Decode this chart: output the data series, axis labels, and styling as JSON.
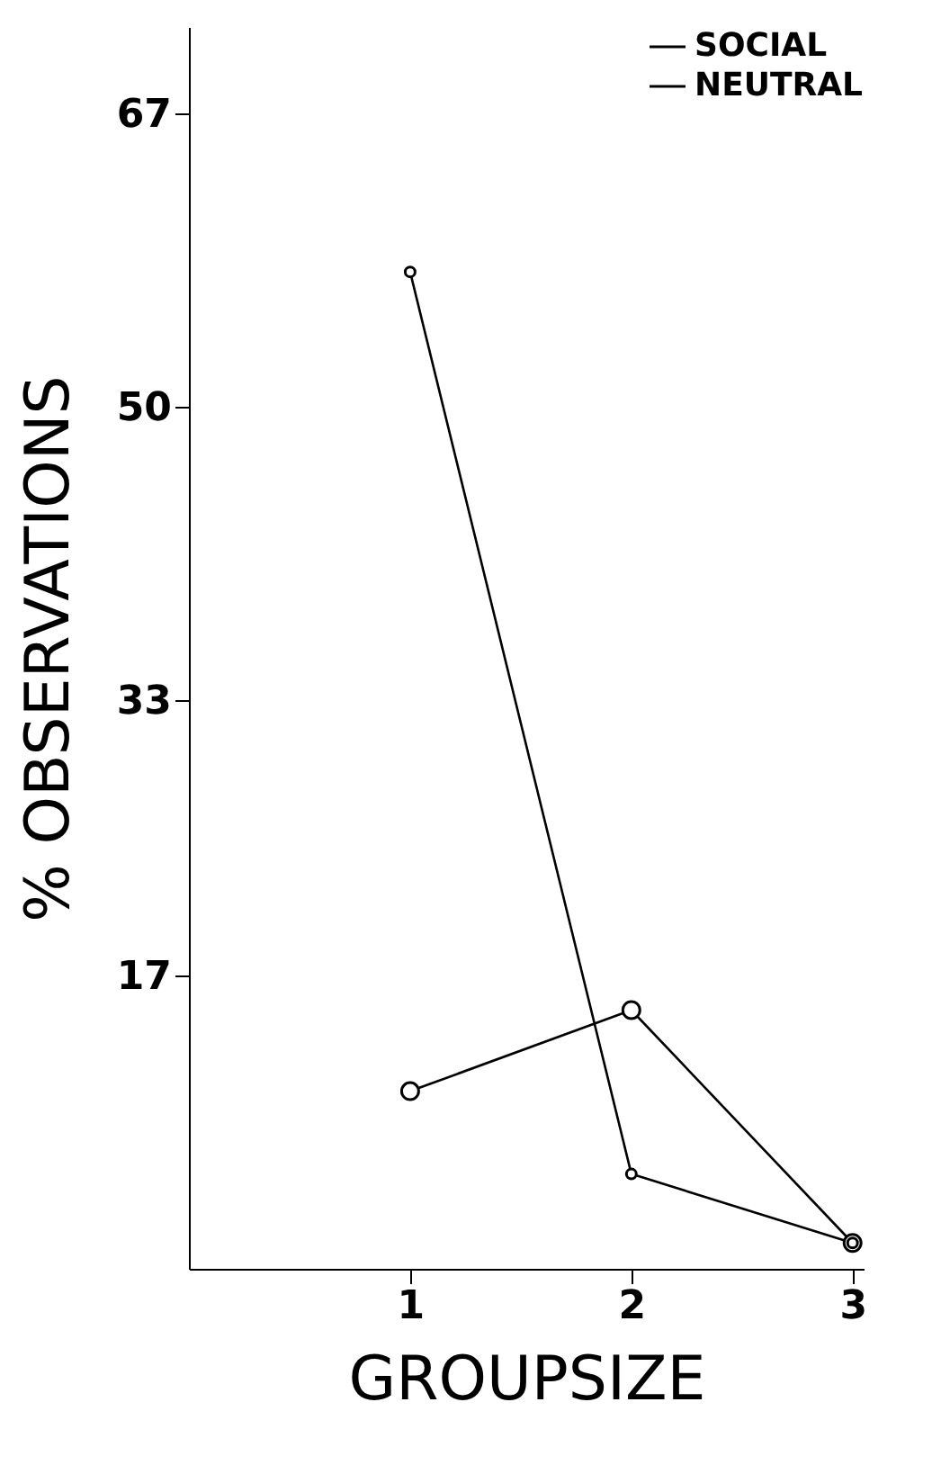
{
  "chart_data": {
    "type": "line",
    "xlabel": "GROUPSIZE",
    "ylabel": "% OBSERVATIONS",
    "x": [
      1,
      2,
      3
    ],
    "series": [
      {
        "name": "SOCIAL",
        "color": "#000000",
        "values": [
          10.3,
          15.0,
          1.5
        ]
      },
      {
        "name": "NEUTRAL",
        "color": "#000000",
        "values": [
          57.8,
          5.5,
          1.5
        ]
      }
    ],
    "xlim": [
      0,
      3.05
    ],
    "xticks": [
      1,
      2,
      3
    ],
    "ylim": [
      0,
      72
    ],
    "yticks": [
      17,
      33,
      50,
      67
    ],
    "grid": false,
    "legend": "top right",
    "marker": "circle",
    "line_style": "solid"
  }
}
